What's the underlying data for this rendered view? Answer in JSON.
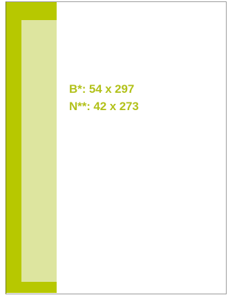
{
  "dimensions": {
    "bleed": "B*: 54 x 297",
    "net": "N**: 42 x 273"
  },
  "colors": {
    "bleed_strip": "#b7c800",
    "trim_panel": "#dde59f",
    "label_text": "#b2c11a",
    "frame_border": "#9a9a9a"
  }
}
